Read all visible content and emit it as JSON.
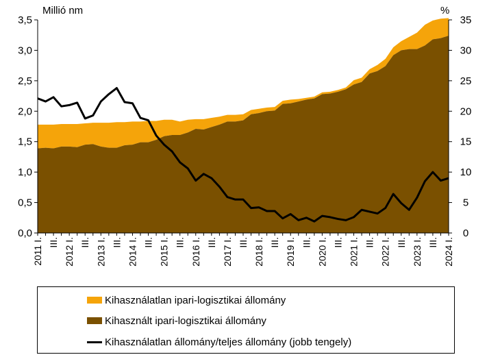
{
  "chart_data": {
    "type": "area",
    "title": "",
    "left_axis_label": "Millió nm",
    "right_axis_label": "%",
    "left_ylim": [
      0,
      3.5
    ],
    "right_ylim": [
      0,
      35
    ],
    "left_ticks": [
      "0,0",
      "0,5",
      "1,0",
      "1,5",
      "2,0",
      "2,5",
      "3,0",
      "3,5"
    ],
    "right_ticks": [
      "0",
      "5",
      "10",
      "15",
      "20",
      "25",
      "30",
      "35"
    ],
    "x_tick_labels": [
      "2011 I.",
      "III.",
      "2012 I.",
      "III.",
      "2013 I.",
      "III.",
      "2014 I.",
      "III.",
      "2015 I.",
      "III.",
      "2016 I.",
      "III.",
      "2017 I.",
      "III.",
      "2018 I.",
      "III.",
      "2019 I.",
      "III.",
      "2020 I.",
      "III.",
      "2021 I.",
      "III.",
      "2022 I.",
      "III.",
      "2023 I.",
      "III.",
      "2024 I."
    ],
    "series": [
      {
        "name": "Kihasznált ipari-logisztikai állomány",
        "type": "area",
        "axis": "left",
        "color": "#7a5000",
        "values": [
          1.39,
          1.4,
          1.39,
          1.42,
          1.42,
          1.41,
          1.45,
          1.46,
          1.42,
          1.4,
          1.4,
          1.44,
          1.45,
          1.49,
          1.49,
          1.53,
          1.59,
          1.61,
          1.61,
          1.65,
          1.71,
          1.7,
          1.74,
          1.78,
          1.83,
          1.83,
          1.85,
          1.95,
          1.97,
          2.0,
          2.01,
          2.12,
          2.13,
          2.16,
          2.19,
          2.21,
          2.28,
          2.29,
          2.32,
          2.36,
          2.44,
          2.48,
          2.62,
          2.66,
          2.74,
          2.92,
          3.0,
          3.02,
          3.02,
          3.08,
          3.18,
          3.2,
          3.24
        ]
      },
      {
        "name": "Kihasználatlan ipari-logisztikai állomány",
        "type": "stacked-area",
        "axis": "left",
        "color": "#f5a40a",
        "totals": [
          1.78,
          1.78,
          1.78,
          1.79,
          1.79,
          1.79,
          1.8,
          1.81,
          1.81,
          1.81,
          1.82,
          1.82,
          1.83,
          1.83,
          1.84,
          1.84,
          1.86,
          1.86,
          1.83,
          1.86,
          1.87,
          1.87,
          1.89,
          1.91,
          1.94,
          1.94,
          1.95,
          2.02,
          2.04,
          2.06,
          2.07,
          2.17,
          2.19,
          2.2,
          2.22,
          2.24,
          2.31,
          2.32,
          2.35,
          2.39,
          2.51,
          2.55,
          2.69,
          2.76,
          2.86,
          3.05,
          3.15,
          3.22,
          3.29,
          3.42,
          3.49,
          3.52,
          3.53
        ]
      },
      {
        "name": "Kihasználatlan állomány/teljes állomány (jobb tengely)",
        "type": "line",
        "axis": "right",
        "color": "#000000",
        "values": [
          22.1,
          21.6,
          22.3,
          20.8,
          21.0,
          21.4,
          18.8,
          19.3,
          21.6,
          22.8,
          23.8,
          21.5,
          21.3,
          18.9,
          18.5,
          16.0,
          14.5,
          13.4,
          11.6,
          10.6,
          8.6,
          9.7,
          9.0,
          7.6,
          5.9,
          5.5,
          5.5,
          4.1,
          4.2,
          3.6,
          3.6,
          2.4,
          3.1,
          2.1,
          2.5,
          1.9,
          2.8,
          2.6,
          2.3,
          2.1,
          2.6,
          3.8,
          3.5,
          3.2,
          4.1,
          6.4,
          4.9,
          3.8,
          5.8,
          8.5,
          10.0,
          8.6,
          9.0
        ]
      }
    ],
    "legend": {
      "placement": "bottom",
      "items": [
        {
          "label": "Kihasználatlan ipari-logisztikai állomány",
          "color": "#f5a40a"
        },
        {
          "label": "Kihasznált ipari-logisztikai állomány",
          "color": "#7a5000"
        },
        {
          "label": "Kihasználatlan állomány/teljes állomány (jobb tengely)",
          "color": "#000000"
        }
      ]
    }
  }
}
